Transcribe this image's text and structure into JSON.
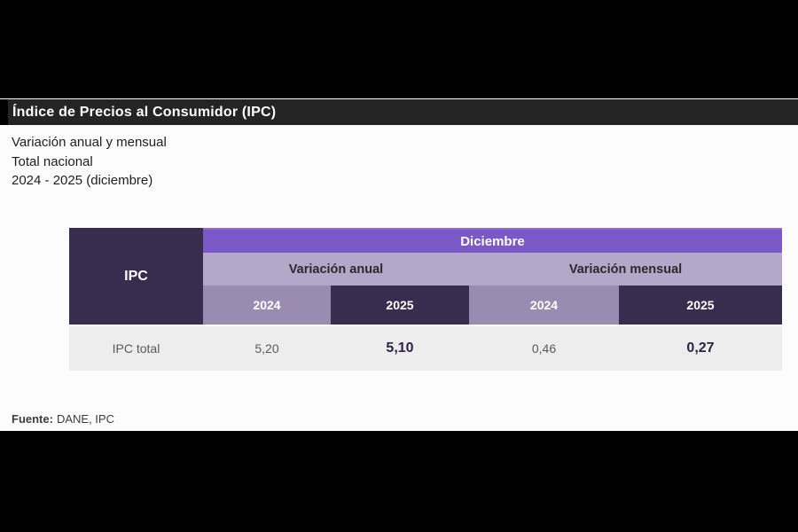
{
  "colors": {
    "letterbox": "#000000",
    "panel_bg": "#fcfcfc",
    "title_bar_bg": "#242424",
    "accent_purple": "#7a58c8",
    "lavender": "#b4a7ca",
    "gray_purple": "#9a8cb1",
    "dark_purple": "#3a2c4e",
    "data_row_bg": "#ededee",
    "bold_value_text": "#2c2344"
  },
  "title_bar": {
    "title": "Índice de Precios al Consumidor (IPC)"
  },
  "subtitle": {
    "lines": [
      "Variación anual y mensual",
      "Total nacional",
      "2024 - 2025 (diciembre)"
    ]
  },
  "table": {
    "corner_label": "IPC",
    "month_header": "Diciembre",
    "group_headers": [
      "Variación anual",
      "Variación mensual"
    ],
    "year_headers": [
      "2024",
      "2025",
      "2024",
      "2025"
    ],
    "row": {
      "label": "IPC total",
      "values": [
        "5,20",
        "5,10",
        "0,46",
        "0,27"
      ]
    }
  },
  "footer": {
    "label": "Fuente:",
    "value": "DANE, IPC"
  },
  "chart_data": {
    "type": "table",
    "title": "Índice de Precios al Consumidor (IPC)",
    "subtitle": "Variación anual y mensual — Total nacional — 2024 - 2025 (diciembre)",
    "month": "Diciembre",
    "columns": [
      "IPC",
      "Variación anual 2024",
      "Variación anual 2025",
      "Variación mensual 2024",
      "Variación mensual 2025"
    ],
    "rows": [
      [
        "IPC total",
        "5,20",
        "5,10",
        "0,46",
        "0,27"
      ]
    ],
    "numeric_values": {
      "variacion_anual": {
        "2024": 5.2,
        "2025": 5.1
      },
      "variacion_mensual": {
        "2024": 0.46,
        "2025": 0.27
      }
    },
    "source": "Fuente: DANE, IPC"
  }
}
